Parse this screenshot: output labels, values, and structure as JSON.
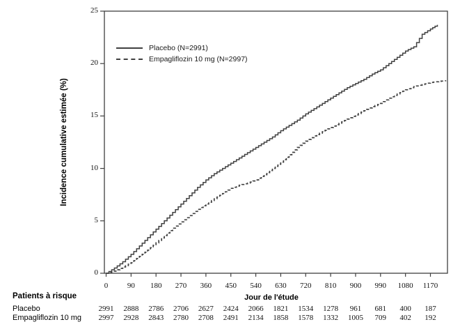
{
  "figure": {
    "y_axis_title": "Incidence cumulative estimée (%)",
    "x_axis_title": "Jour de l'étude"
  },
  "legend": {
    "items": [
      {
        "label": "Placebo (N=2991)",
        "style": "solid"
      },
      {
        "label": "Empagliflozin 10 mg (N=2997)",
        "style": "dashed"
      }
    ]
  },
  "axes": {
    "x_ticks": [
      "0",
      "90",
      "180",
      "270",
      "360",
      "450",
      "540",
      "630",
      "720",
      "810",
      "900",
      "990",
      "1080",
      "1170"
    ],
    "y_ticks": [
      "0",
      "5",
      "10",
      "15",
      "20",
      "25"
    ]
  },
  "risk_table": {
    "title": "Patients à risque",
    "rows": [
      {
        "label": "Placebo",
        "values": [
          "2991",
          "2888",
          "2786",
          "2706",
          "2627",
          "2424",
          "2066",
          "1821",
          "1534",
          "1278",
          "961",
          "681",
          "400",
          "187"
        ]
      },
      {
        "label": "Empagliflozin 10 mg",
        "values": [
          "2997",
          "2928",
          "2843",
          "2780",
          "2708",
          "2491",
          "2134",
          "1858",
          "1578",
          "1332",
          "1005",
          "709",
          "402",
          "192"
        ]
      }
    ]
  },
  "colors": {
    "curve": "#404040",
    "axis": "#3f3f3f",
    "text": "#000000"
  },
  "chart_data": {
    "type": "line",
    "subtype": "kaplan-meier-step",
    "title": "",
    "xlabel": "Jour de l'étude",
    "ylabel": "Incidence cumulative estimée (%)",
    "xlim": [
      0,
      1230
    ],
    "ylim": [
      0,
      25
    ],
    "x_tick_values": [
      0,
      90,
      180,
      270,
      360,
      450,
      540,
      630,
      720,
      810,
      900,
      990,
      1080,
      1170
    ],
    "y_tick_values": [
      0,
      5,
      10,
      15,
      20,
      25
    ],
    "grid": false,
    "legend_position": "upper-left-inside",
    "series": [
      {
        "name": "Placebo (N=2991)",
        "style": "solid",
        "color": "#404040",
        "x": [
          0,
          30,
          60,
          90,
          120,
          150,
          180,
          210,
          240,
          270,
          300,
          330,
          360,
          390,
          420,
          450,
          480,
          510,
          540,
          570,
          600,
          630,
          660,
          690,
          720,
          750,
          780,
          810,
          840,
          870,
          900,
          930,
          960,
          990,
          1020,
          1050,
          1080,
          1110,
          1140,
          1170,
          1195
        ],
        "y": [
          0,
          0.5,
          1.1,
          1.8,
          2.6,
          3.4,
          4.2,
          5.0,
          5.8,
          6.6,
          7.4,
          8.2,
          8.9,
          9.5,
          10.0,
          10.5,
          11.0,
          11.5,
          12.0,
          12.5,
          13.0,
          13.6,
          14.1,
          14.6,
          15.2,
          15.7,
          16.2,
          16.7,
          17.2,
          17.7,
          18.1,
          18.5,
          19.0,
          19.4,
          20.0,
          20.6,
          21.2,
          21.6,
          22.8,
          23.3,
          23.7
        ]
      },
      {
        "name": "Empagliflozin 10 mg (N=2997)",
        "style": "dashed",
        "color": "#404040",
        "x": [
          0,
          30,
          60,
          90,
          120,
          150,
          180,
          210,
          240,
          270,
          300,
          330,
          360,
          390,
          420,
          450,
          480,
          510,
          540,
          570,
          600,
          630,
          660,
          690,
          720,
          750,
          780,
          810,
          840,
          870,
          900,
          930,
          960,
          990,
          1020,
          1050,
          1080,
          1110,
          1140,
          1170,
          1200,
          1225
        ],
        "y": [
          0,
          0.2,
          0.6,
          1.0,
          1.6,
          2.2,
          2.9,
          3.6,
          4.3,
          4.9,
          5.5,
          6.1,
          6.6,
          7.1,
          7.6,
          8.1,
          8.4,
          8.6,
          8.9,
          9.4,
          10.0,
          10.6,
          11.3,
          12.0,
          12.6,
          13.1,
          13.5,
          13.9,
          14.3,
          14.7,
          15.1,
          15.5,
          15.9,
          16.2,
          16.7,
          17.1,
          17.5,
          17.8,
          18.0,
          18.2,
          18.3,
          18.4
        ]
      }
    ]
  }
}
